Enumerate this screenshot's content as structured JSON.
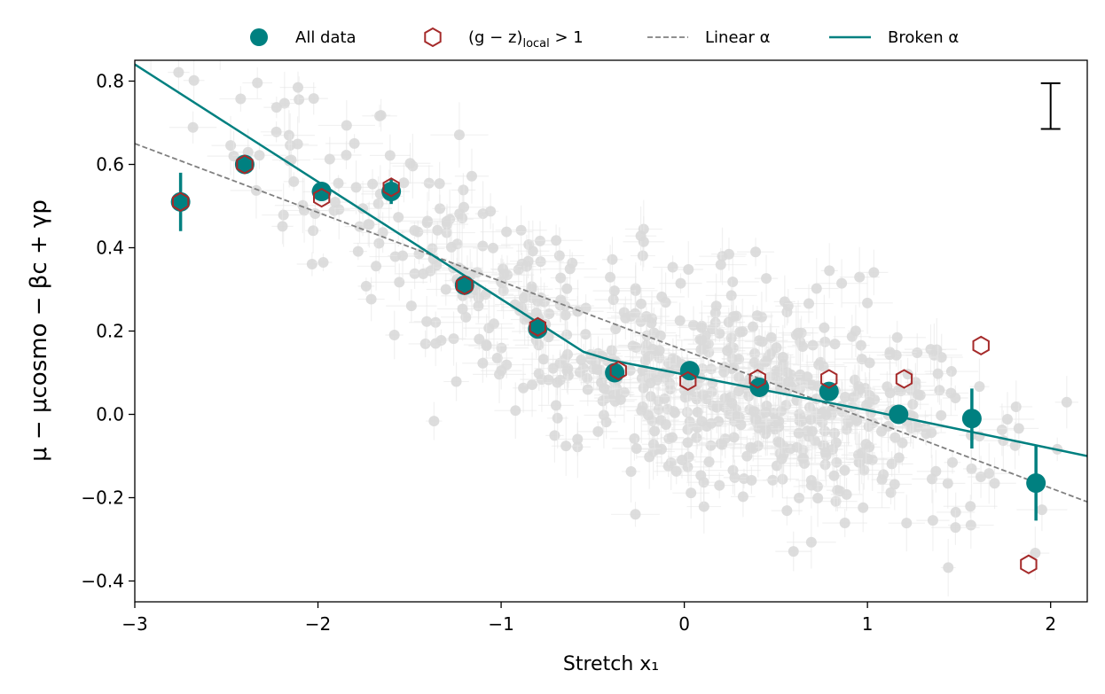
{
  "chart_data": {
    "type": "scatter",
    "title": "",
    "xlabel": "Stretch x₁",
    "ylabel": "μ − μcosmo − βc + γp",
    "xlim": [
      -3,
      2.2
    ],
    "ylim": [
      -0.45,
      0.85
    ],
    "xticks": [
      -3,
      -2,
      -1,
      0,
      1,
      2
    ],
    "xtick_labels": [
      "−3",
      "−2",
      "−1",
      "0",
      "1",
      "2"
    ],
    "yticks": [
      -0.4,
      -0.2,
      0.0,
      0.2,
      0.4,
      0.6,
      0.8
    ],
    "ytick_labels": [
      "−0.4",
      "−0.2",
      "0.0",
      "0.2",
      "0.4",
      "0.6",
      "0.8"
    ],
    "legend": {
      "placement": "top, above plot",
      "all_data": "All data",
      "gz_prefix": "(g − z)",
      "gz_sub": "local",
      "gz_suffix": " > 1",
      "linear": "Linear α",
      "broken": "Broken α"
    },
    "colors": {
      "all_data": "#008080",
      "gz": "#a52a2a",
      "linear": "#808080",
      "broken": "#008080",
      "background_points": "#d9d9d9"
    },
    "series": [
      {
        "name": "All data",
        "x": [
          -2.75,
          -2.4,
          -1.98,
          -1.6,
          -1.2,
          -0.8,
          -0.38,
          0.03,
          0.41,
          0.79,
          1.17,
          1.57,
          1.92
        ],
        "y": [
          0.51,
          0.6,
          0.535,
          0.535,
          0.31,
          0.205,
          0.1,
          0.105,
          0.065,
          0.055,
          0.0,
          -0.01,
          -0.165
        ],
        "yerr": [
          0.07,
          0.012,
          0.02,
          0.03,
          0.02,
          0.015,
          0.015,
          0.012,
          0.015,
          0.015,
          0.02,
          0.072,
          0.09
        ]
      },
      {
        "name": "(g − z)local > 1",
        "x": [
          -2.75,
          -2.4,
          -1.98,
          -1.6,
          -1.2,
          -0.8,
          -0.36,
          0.02,
          0.4,
          0.79,
          1.2,
          1.62,
          1.88
        ],
        "y": [
          0.51,
          0.6,
          0.52,
          0.545,
          0.31,
          0.21,
          0.105,
          0.08,
          0.085,
          0.085,
          0.085,
          0.165,
          -0.36
        ]
      },
      {
        "name": "Linear α",
        "x": [
          -3,
          2.2
        ],
        "y": [
          0.65,
          -0.21
        ]
      },
      {
        "name": "Broken α",
        "x": [
          -3,
          -0.55,
          -0.4,
          1.0,
          2.2
        ],
        "y": [
          0.84,
          0.15,
          0.13,
          0.01,
          -0.1
        ]
      }
    ],
    "single_error_bar": {
      "x": 2.0,
      "y_low": 0.685,
      "y_high": 0.795
    }
  }
}
